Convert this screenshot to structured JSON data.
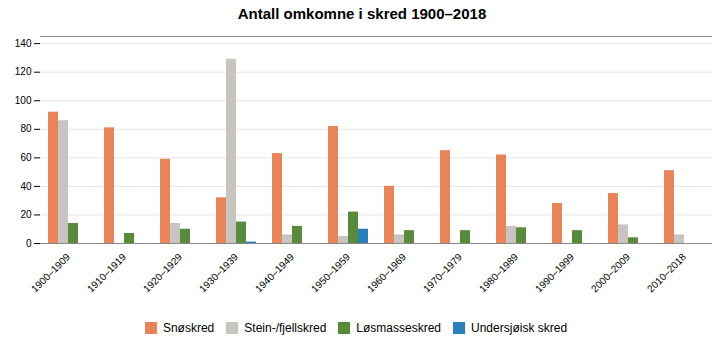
{
  "chart_data": {
    "type": "bar",
    "title": "Antall omkomne i skred 1900–2018",
    "categories": [
      "1900–1909",
      "1910–1919",
      "1920–1929",
      "1930–1939",
      "1940–1949",
      "1950–1959",
      "1960–1969",
      "1970–1979",
      "1980–1989",
      "1990–1999",
      "2000–2009",
      "2010–2018"
    ],
    "series": [
      {
        "name": "Snøskred",
        "color": "#E8845A",
        "values": [
          92,
          81,
          59,
          32,
          63,
          82,
          40,
          65,
          62,
          28,
          35,
          51
        ]
      },
      {
        "name": "Stein-/fjellskred",
        "color": "#C8C5C0",
        "values": [
          86,
          0,
          14,
          129,
          6,
          5,
          6,
          0,
          12,
          0,
          13,
          6
        ]
      },
      {
        "name": "Løsmasseskred",
        "color": "#5A8A3C",
        "values": [
          14,
          7,
          10,
          15,
          12,
          22,
          9,
          9,
          11,
          9,
          4,
          0
        ]
      },
      {
        "name": "Undersjøisk skred",
        "color": "#2980B9",
        "values": [
          0,
          0,
          0,
          1,
          0,
          10,
          0,
          0,
          0,
          0,
          0,
          0
        ]
      }
    ],
    "ylim": [
      0,
      145
    ],
    "yticks": [
      0,
      20,
      40,
      60,
      80,
      100,
      120,
      140
    ],
    "grid": true,
    "legend": "bottom"
  }
}
